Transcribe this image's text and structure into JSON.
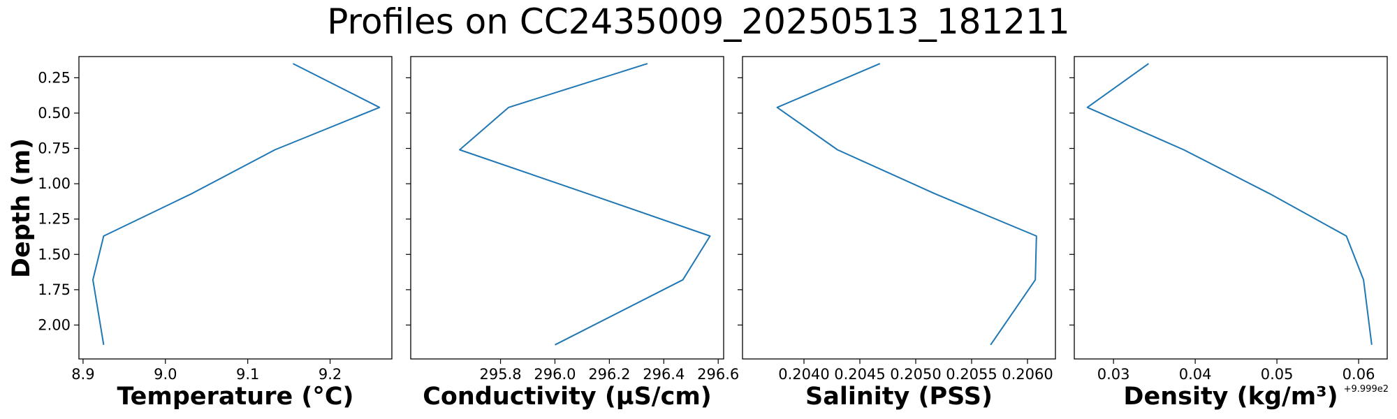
{
  "figure_title": "Profiles on CC2435009_20250513_181211",
  "shared_ylabel": "Depth (m)",
  "chart_data": [
    {
      "type": "line",
      "xlabel": "Temperature (°C)",
      "ylabel": "Depth (m)",
      "xlim": [
        8.895,
        9.275
      ],
      "ylim": [
        2.24,
        0.1
      ],
      "y_inverted": true,
      "xticks": [
        "8.9",
        "9.0",
        "9.1",
        "9.2"
      ],
      "xtick_values": [
        8.9,
        9.0,
        9.1,
        9.2
      ],
      "yticks": [
        "0.25",
        "0.50",
        "0.75",
        "1.00",
        "1.25",
        "1.50",
        "1.75",
        "2.00"
      ],
      "ytick_values": [
        0.25,
        0.5,
        0.75,
        1.0,
        1.25,
        1.5,
        1.75,
        2.0
      ],
      "x": [
        9.155,
        9.26,
        9.133,
        9.032,
        8.925,
        8.912,
        8.925
      ],
      "y": [
        0.15,
        0.46,
        0.76,
        1.07,
        1.37,
        1.68,
        2.14
      ],
      "grid": false,
      "color": "#1f77b4"
    },
    {
      "type": "line",
      "xlabel": "Conductivity (µS/cm)",
      "xlim": [
        295.47,
        296.62
      ],
      "ylim": [
        2.24,
        0.1
      ],
      "y_inverted": true,
      "xticks": [
        "295.8",
        "296.0",
        "296.2",
        "296.4",
        "296.6"
      ],
      "xtick_values": [
        295.8,
        296.0,
        296.2,
        296.4,
        296.6
      ],
      "x": [
        296.34,
        295.83,
        295.65,
        296.12,
        296.57,
        296.47,
        296.0
      ],
      "y": [
        0.15,
        0.46,
        0.76,
        1.07,
        1.37,
        1.68,
        2.14
      ],
      "grid": false,
      "color": "#1f77b4"
    },
    {
      "type": "line",
      "xlabel": "Salinity (PSS)",
      "xlim": [
        0.20345,
        0.20625
      ],
      "ylim": [
        2.24,
        0.1
      ],
      "y_inverted": true,
      "xticks": [
        "0.2040",
        "0.2045",
        "0.2050",
        "0.2055",
        "0.2060"
      ],
      "xtick_values": [
        0.204,
        0.2045,
        0.205,
        0.2055,
        0.206
      ],
      "x": [
        0.20468,
        0.20376,
        0.2043,
        0.20517,
        0.20608,
        0.20607,
        0.20567
      ],
      "y": [
        0.15,
        0.46,
        0.76,
        1.07,
        1.37,
        1.68,
        2.14
      ],
      "grid": false,
      "color": "#1f77b4"
    },
    {
      "type": "line",
      "xlabel": "Density (kg/m³)",
      "x_offset_label": "+9.999e2",
      "xlim": [
        0.0252,
        0.0635
      ],
      "ylim": [
        2.24,
        0.1
      ],
      "y_inverted": true,
      "xticks": [
        "0.03",
        "0.04",
        "0.05",
        "0.06"
      ],
      "xtick_values": [
        0.03,
        0.04,
        0.05,
        0.06
      ],
      "x": [
        0.0343,
        0.0268,
        0.0386,
        0.0491,
        0.0585,
        0.0606,
        0.0616
      ],
      "y": [
        0.15,
        0.46,
        0.76,
        1.07,
        1.37,
        1.68,
        2.14
      ],
      "grid": false,
      "color": "#1f77b4"
    }
  ]
}
